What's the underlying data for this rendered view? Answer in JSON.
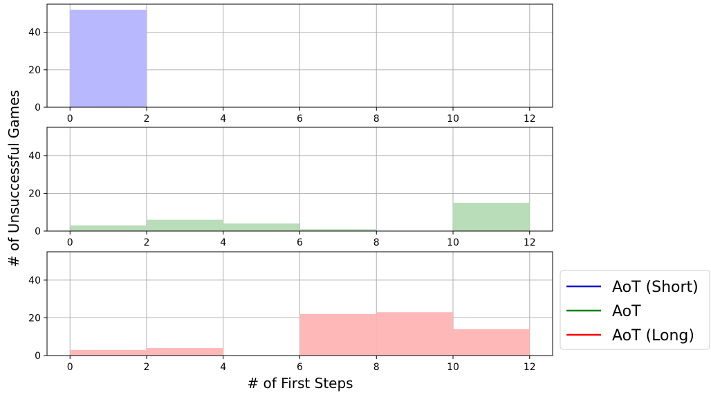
{
  "chart_data": {
    "type": "bar",
    "xlabel": "# of First Steps",
    "ylabel": "# of Unsuccessful Games",
    "xlim": [
      -0.6,
      12.6
    ],
    "ylim": [
      0,
      55
    ],
    "xticks": [
      "0",
      "2",
      "4",
      "6",
      "8",
      "10",
      "12"
    ],
    "yticks": [
      "0",
      "20",
      "40"
    ],
    "bin_edges": [
      0,
      2,
      4,
      6,
      8,
      10,
      12
    ],
    "grid": true,
    "legend_placement": "right",
    "series": [
      {
        "name": "AoT (Short)",
        "color": "#0000cc",
        "fill": "#b8b8ff",
        "counts": [
          52,
          0,
          0,
          0,
          0,
          0
        ]
      },
      {
        "name": "AoT",
        "color": "#008000",
        "fill": "#b8ddb8",
        "counts": [
          3,
          6,
          4,
          1,
          0,
          15
        ]
      },
      {
        "name": "AoT (Long)",
        "color": "#ff0000",
        "fill": "#ffb8b8",
        "counts": [
          3,
          4,
          0,
          22,
          23,
          14
        ]
      }
    ]
  }
}
